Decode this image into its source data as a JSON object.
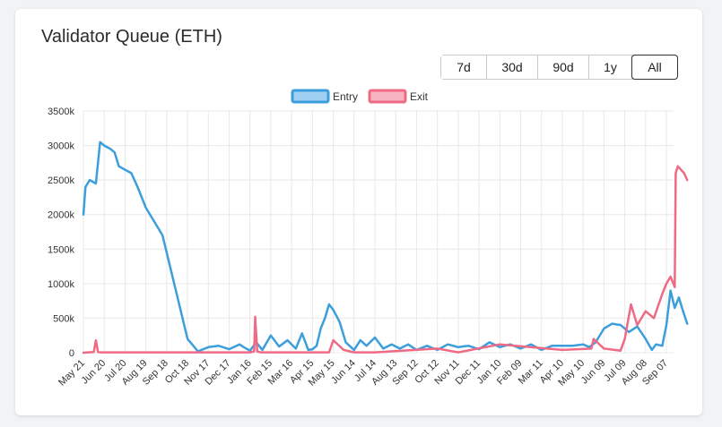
{
  "card": {
    "title": "Validator Queue (ETH)"
  },
  "range_buttons": [
    {
      "label": "7d",
      "active": false
    },
    {
      "label": "30d",
      "active": false
    },
    {
      "label": "90d",
      "active": false
    },
    {
      "label": "1y",
      "active": false
    },
    {
      "label": "All",
      "active": true
    }
  ],
  "colors": {
    "entry_line": "#3d9edc",
    "entry_fill": "#9fd0f3",
    "exit_line": "#ef6a85",
    "exit_fill": "#f7b3c1",
    "grid": "#e8e8e8"
  },
  "chart_data": {
    "type": "line",
    "title": "",
    "ylim": [
      0,
      3500
    ],
    "y_ticks": [
      "0",
      "500k",
      "1000k",
      "1500k",
      "2000k",
      "2500k",
      "3000k",
      "3500k"
    ],
    "y_tick_values": [
      0,
      500,
      1000,
      1500,
      2000,
      2500,
      3000,
      3500
    ],
    "x_tick_labels": [
      "May 21",
      "Jun 20",
      "Jul 20",
      "Aug 19",
      "Sep 18",
      "Oct 18",
      "Nov 17",
      "Dec 17",
      "Jan 16",
      "Feb 15",
      "Mar 16",
      "Apr 15",
      "May 15",
      "Jun 14",
      "Jul 14",
      "Aug 13",
      "Sep 12",
      "Oct 12",
      "Nov 11",
      "Dec 11",
      "Jan 10",
      "Feb 09",
      "Mar 11",
      "Apr 10",
      "May 10",
      "Jun 09",
      "Jul 09",
      "Aug 08",
      "Sep 07"
    ],
    "grid": true,
    "legend": "top-center",
    "series": [
      {
        "name": "Entry",
        "x": [
          0,
          0.1,
          0.3,
          0.6,
          0.8,
          1.0,
          1.3,
          1.5,
          1.7,
          2.0,
          2.3,
          2.6,
          3.0,
          3.4,
          3.8,
          4.2,
          4.6,
          5.0,
          5.5,
          6.0,
          6.5,
          7.0,
          7.5,
          7.7,
          8.0,
          8.3,
          8.6,
          9.0,
          9.4,
          9.8,
          10.2,
          10.5,
          10.8,
          11.0,
          11.2,
          11.4,
          11.6,
          11.8,
          12.0,
          12.3,
          12.6,
          13.0,
          13.3,
          13.6,
          14.0,
          14.4,
          14.8,
          15.2,
          15.6,
          16.0,
          16.5,
          17.0,
          17.5,
          18.0,
          18.5,
          19.0,
          19.5,
          20.0,
          20.5,
          21.0,
          21.5,
          22.0,
          22.5,
          23.0,
          23.5,
          24.0,
          24.3,
          24.6,
          25.0,
          25.4,
          25.8,
          26.2,
          26.6,
          27.0,
          27.3,
          27.5,
          27.8,
          28.0,
          28.2,
          28.4,
          28.6,
          28.8,
          29.0
        ],
        "values": [
          2000,
          2400,
          2500,
          2450,
          3050,
          3000,
          2950,
          2900,
          2700,
          2650,
          2600,
          2400,
          2100,
          1900,
          1700,
          1200,
          700,
          200,
          20,
          80,
          100,
          50,
          120,
          80,
          30,
          150,
          40,
          250,
          90,
          180,
          60,
          280,
          40,
          50,
          100,
          350,
          500,
          700,
          620,
          450,
          150,
          40,
          180,
          100,
          220,
          60,
          120,
          60,
          120,
          40,
          100,
          40,
          120,
          80,
          100,
          50,
          150,
          80,
          120,
          60,
          120,
          40,
          100,
          100,
          100,
          120,
          80,
          150,
          350,
          420,
          400,
          300,
          380,
          200,
          40,
          120,
          100,
          400,
          900,
          650,
          800,
          600,
          420
        ]
      },
      {
        "name": "Exit",
        "x": [
          0,
          0.5,
          0.6,
          0.7,
          0.8,
          3.0,
          6.0,
          8.0,
          8.2,
          8.25,
          8.35,
          8.5,
          9.0,
          11.8,
          12.0,
          12.5,
          13.0,
          14.0,
          17.0,
          18.0,
          20.0,
          23.0,
          24.4,
          24.5,
          25.0,
          25.8,
          26.0,
          26.3,
          26.6,
          27.0,
          27.4,
          27.8,
          28.0,
          28.2,
          28.4,
          28.45,
          28.55,
          28.7,
          28.85,
          29.0
        ],
        "values": [
          0,
          10,
          180,
          10,
          5,
          5,
          5,
          5,
          20,
          520,
          20,
          5,
          5,
          5,
          180,
          40,
          5,
          5,
          60,
          5,
          120,
          40,
          60,
          200,
          60,
          30,
          200,
          700,
          400,
          600,
          500,
          850,
          1000,
          1100,
          950,
          2600,
          2700,
          2650,
          2600,
          2500
        ]
      }
    ]
  },
  "legend": {
    "entry_label": "Entry",
    "exit_label": "Exit"
  }
}
